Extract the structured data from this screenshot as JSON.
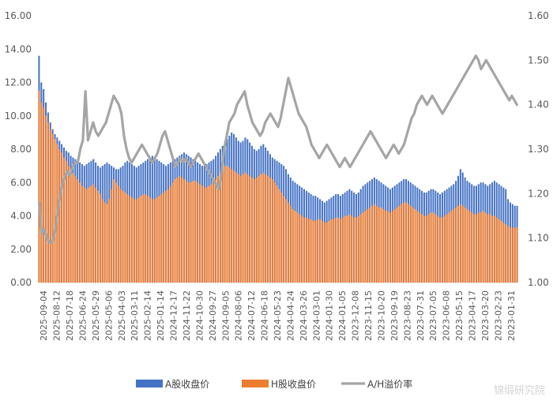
{
  "chart_data": {
    "type": "bar",
    "title": "",
    "xlabel": "",
    "ylabel": "",
    "ylim": [
      0,
      16
    ],
    "y2lim": [
      1.0,
      1.6
    ],
    "grid": false,
    "legend_position": "bottom",
    "y_tick_labels": [
      "0.00",
      "2.00",
      "4.00",
      "6.00",
      "8.00",
      "10.00",
      "12.00",
      "14.00",
      "16.00"
    ],
    "y2_tick_labels": [
      "1.00",
      "1.10",
      "1.20",
      "1.30",
      "1.40",
      "1.50",
      "1.60"
    ],
    "x_tick_labels": [
      "2025-09-04",
      "2025-08-12",
      "2025-07-18",
      "2025-06-24",
      "2025-05-29",
      "2025-05-06",
      "2025-04-03",
      "2025-03-11",
      "2025-02-14",
      "2025-01-14",
      "2024-12-17",
      "2024-11-22",
      "2024-10-30",
      "2024-09-27",
      "2024-09-05",
      "2024-08-06",
      "2024-07-12",
      "2024-06-18",
      "2024-05-23",
      "2024-04-24",
      "2024-03-26",
      "2024-03-01",
      "2024-01-30",
      "2024-01-05",
      "2023-12-08",
      "2023-11-15",
      "2023-10-20",
      "2023-09-19",
      "2023-08-23",
      "2023-07-31",
      "2023-07-05",
      "2023-06-08",
      "2023-05-15",
      "2023-04-17",
      "2023-03-20",
      "2023-02-23",
      "2023-01-31"
    ],
    "series": [
      {
        "name": "A股收盘价",
        "type": "bar",
        "color": "#4472C4",
        "values": [
          13.6,
          12.0,
          11.6,
          10.8,
          10.2,
          9.6,
          9.2,
          8.9,
          8.7,
          8.5,
          8.3,
          8.1,
          7.9,
          7.8,
          7.6,
          7.5,
          7.4,
          7.3,
          7.2,
          7.1,
          7.0,
          7.1,
          7.2,
          7.3,
          7.4,
          7.2,
          7.0,
          6.9,
          7.0,
          7.1,
          7.2,
          7.1,
          7.0,
          6.9,
          6.8,
          6.8,
          6.9,
          7.0,
          7.2,
          7.3,
          7.2,
          7.1,
          7.0,
          6.9,
          7.0,
          7.1,
          7.2,
          7.3,
          7.4,
          7.5,
          7.6,
          7.5,
          7.4,
          7.3,
          7.2,
          7.1,
          7.0,
          7.1,
          7.2,
          7.3,
          7.4,
          7.5,
          7.6,
          7.7,
          7.8,
          7.7,
          7.6,
          7.5,
          7.4,
          7.3,
          7.2,
          7.1,
          7.0,
          7.0,
          7.1,
          7.2,
          7.3,
          7.4,
          7.6,
          7.8,
          8.0,
          8.2,
          8.4,
          8.6,
          8.8,
          9.0,
          8.9,
          8.7,
          8.5,
          8.4,
          8.5,
          8.7,
          8.6,
          8.4,
          8.2,
          8.0,
          7.9,
          8.0,
          8.2,
          8.3,
          8.1,
          7.9,
          7.7,
          7.5,
          7.4,
          7.3,
          7.2,
          7.1,
          7.0,
          6.8,
          6.5,
          6.3,
          6.1,
          6.0,
          5.9,
          5.8,
          5.7,
          5.6,
          5.5,
          5.4,
          5.3,
          5.2,
          5.2,
          5.1,
          5.0,
          4.9,
          4.8,
          4.9,
          5.0,
          5.1,
          5.2,
          5.3,
          5.3,
          5.2,
          5.3,
          5.4,
          5.5,
          5.6,
          5.5,
          5.4,
          5.3,
          5.4,
          5.6,
          5.8,
          5.9,
          6.0,
          6.1,
          6.2,
          6.3,
          6.2,
          6.1,
          6.0,
          5.9,
          5.8,
          5.7,
          5.6,
          5.7,
          5.8,
          5.9,
          6.0,
          6.1,
          6.2,
          6.2,
          6.1,
          6.0,
          5.9,
          5.8,
          5.7,
          5.6,
          5.5,
          5.4,
          5.4,
          5.5,
          5.6,
          5.6,
          5.5,
          5.4,
          5.3,
          5.4,
          5.5,
          5.6,
          5.7,
          5.8,
          5.9,
          6.1,
          6.4,
          6.8,
          6.6,
          6.3,
          6.1,
          6.0,
          5.9,
          5.8,
          5.8,
          5.9,
          6.0,
          6.0,
          5.9,
          5.8,
          5.9,
          6.0,
          6.1,
          6.0,
          5.9,
          5.8,
          5.7,
          5.6,
          5.0,
          4.8,
          4.7,
          4.6,
          4.6
        ]
      },
      {
        "name": "H股收盘价",
        "type": "bar",
        "color": "#ED7D31",
        "values": [
          11.5,
          10.8,
          10.5,
          10.0,
          9.6,
          9.2,
          8.9,
          8.6,
          8.3,
          8.0,
          7.8,
          7.5,
          7.3,
          7.0,
          6.8,
          6.6,
          6.4,
          6.2,
          6.0,
          5.8,
          5.7,
          5.6,
          5.7,
          5.8,
          5.9,
          5.7,
          5.5,
          5.3,
          5.0,
          4.8,
          4.7,
          5.0,
          5.6,
          6.2,
          6.0,
          5.8,
          5.6,
          5.5,
          5.4,
          5.3,
          5.2,
          5.1,
          5.0,
          5.0,
          5.1,
          5.2,
          5.3,
          5.3,
          5.2,
          5.1,
          5.0,
          5.0,
          5.1,
          5.2,
          5.3,
          5.4,
          5.5,
          5.6,
          5.8,
          6.0,
          6.2,
          6.3,
          6.4,
          6.3,
          6.2,
          6.1,
          6.0,
          6.0,
          6.1,
          6.1,
          6.0,
          5.9,
          5.8,
          5.7,
          5.7,
          5.8,
          5.9,
          6.0,
          6.2,
          6.4,
          6.6,
          6.8,
          7.0,
          7.0,
          6.9,
          6.8,
          6.7,
          6.6,
          6.5,
          6.4,
          6.5,
          6.6,
          6.5,
          6.4,
          6.3,
          6.2,
          6.3,
          6.4,
          6.5,
          6.6,
          6.5,
          6.4,
          6.3,
          6.2,
          6.0,
          5.8,
          5.6,
          5.4,
          5.2,
          5.0,
          4.8,
          4.6,
          4.4,
          4.3,
          4.2,
          4.1,
          4.0,
          3.9,
          3.9,
          3.8,
          3.8,
          3.7,
          3.7,
          3.8,
          3.8,
          3.7,
          3.6,
          3.6,
          3.7,
          3.8,
          3.8,
          3.9,
          3.9,
          3.8,
          3.9,
          4.0,
          4.0,
          4.1,
          4.0,
          3.9,
          3.9,
          4.0,
          4.1,
          4.2,
          4.3,
          4.4,
          4.5,
          4.6,
          4.7,
          4.6,
          4.5,
          4.5,
          4.4,
          4.3,
          4.3,
          4.2,
          4.3,
          4.4,
          4.5,
          4.6,
          4.7,
          4.8,
          4.8,
          4.7,
          4.6,
          4.5,
          4.4,
          4.3,
          4.2,
          4.1,
          4.0,
          4.0,
          4.1,
          4.2,
          4.2,
          4.1,
          4.0,
          3.9,
          3.9,
          4.0,
          4.1,
          4.2,
          4.3,
          4.4,
          4.5,
          4.6,
          4.7,
          4.6,
          4.5,
          4.4,
          4.3,
          4.2,
          4.1,
          4.1,
          4.2,
          4.2,
          4.3,
          4.2,
          4.1,
          4.1,
          4.0,
          4.0,
          3.9,
          3.8,
          3.7,
          3.6,
          3.5,
          3.4,
          3.3,
          3.3,
          3.3,
          3.3
        ]
      },
      {
        "name": "A/H溢价率",
        "type": "line",
        "axis": "right",
        "color": "#A5A5A5",
        "values": [
          1.18,
          1.11,
          1.12,
          1.1,
          1.09,
          1.09,
          1.11,
          1.15,
          1.19,
          1.22,
          1.24,
          1.25,
          1.24,
          1.26,
          1.27,
          1.27,
          1.3,
          1.32,
          1.43,
          1.32,
          1.34,
          1.36,
          1.34,
          1.33,
          1.34,
          1.35,
          1.36,
          1.38,
          1.4,
          1.42,
          1.41,
          1.4,
          1.38,
          1.33,
          1.3,
          1.28,
          1.27,
          1.28,
          1.29,
          1.3,
          1.31,
          1.3,
          1.29,
          1.28,
          1.27,
          1.28,
          1.29,
          1.31,
          1.33,
          1.34,
          1.32,
          1.3,
          1.28,
          1.26,
          1.27,
          1.28,
          1.27,
          1.28,
          1.27,
          1.26,
          1.27,
          1.28,
          1.29,
          1.28,
          1.27,
          1.26,
          1.25,
          1.24,
          1.23,
          1.22,
          1.21,
          1.25,
          1.3,
          1.33,
          1.36,
          1.37,
          1.38,
          1.4,
          1.41,
          1.42,
          1.43,
          1.4,
          1.38,
          1.36,
          1.35,
          1.34,
          1.33,
          1.34,
          1.36,
          1.37,
          1.38,
          1.37,
          1.36,
          1.35,
          1.37,
          1.4,
          1.43,
          1.46,
          1.44,
          1.42,
          1.4,
          1.38,
          1.37,
          1.36,
          1.35,
          1.33,
          1.31,
          1.3,
          1.29,
          1.28,
          1.29,
          1.3,
          1.31,
          1.3,
          1.29,
          1.28,
          1.27,
          1.26,
          1.27,
          1.28,
          1.27,
          1.26,
          1.27,
          1.28,
          1.29,
          1.3,
          1.31,
          1.32,
          1.33,
          1.34,
          1.33,
          1.32,
          1.31,
          1.3,
          1.29,
          1.28,
          1.29,
          1.3,
          1.31,
          1.3,
          1.29,
          1.3,
          1.31,
          1.33,
          1.35,
          1.37,
          1.38,
          1.4,
          1.41,
          1.42,
          1.41,
          1.4,
          1.41,
          1.42,
          1.41,
          1.4,
          1.39,
          1.38,
          1.39,
          1.4,
          1.41,
          1.42,
          1.43,
          1.44,
          1.45,
          1.46,
          1.47,
          1.48,
          1.49,
          1.5,
          1.51,
          1.5,
          1.48,
          1.49,
          1.5,
          1.49,
          1.48,
          1.47,
          1.46,
          1.45,
          1.44,
          1.43,
          1.42,
          1.41,
          1.42,
          1.41,
          1.4
        ]
      }
    ]
  },
  "watermark": "锦缎研究院"
}
